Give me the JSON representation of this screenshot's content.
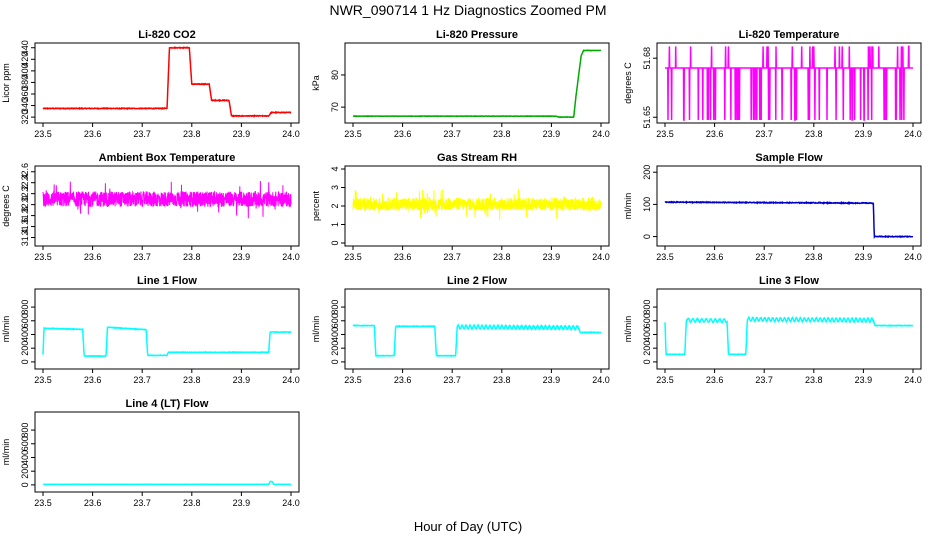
{
  "figure": {
    "title": "NWR_090714  1 Hz Diagnostics Zoomed PM",
    "xlabel": "Hour of Day (UTC)",
    "x_ticks": [
      "23.5",
      "23.6",
      "23.7",
      "23.8",
      "23.9",
      "24.0"
    ]
  },
  "chart_data": [
    {
      "type": "line",
      "title": "Li-820 CO2",
      "ylabel": "Licor ppm",
      "color": "#ff0000",
      "xlim": [
        23.5,
        24.0
      ],
      "ylim": [
        315,
        443
      ],
      "yticks": [
        "320",
        "340",
        "360",
        "380",
        "400",
        "420",
        "440"
      ],
      "noise": 0.6,
      "series": [
        {
          "x": [
            23.5,
            23.75,
            23.755,
            23.795,
            23.8,
            23.835,
            23.84,
            23.875,
            23.88,
            23.955,
            23.96,
            24.0
          ],
          "y": [
            335,
            335,
            440,
            440,
            377,
            377,
            349,
            349,
            322,
            322,
            328,
            328
          ]
        }
      ]
    },
    {
      "type": "line",
      "title": "Li-820 Pressure",
      "ylabel": "kPa",
      "color": "#00aa00",
      "xlim": [
        23.5,
        24.0
      ],
      "ylim": [
        66,
        89
      ],
      "yticks": [
        "70",
        "80"
      ],
      "noise": 0.05,
      "series": [
        {
          "x": [
            23.5,
            23.91,
            23.915,
            23.945,
            23.95,
            23.96,
            23.965,
            24.0
          ],
          "y": [
            67.2,
            67.2,
            66.9,
            66.9,
            74,
            86,
            87.6,
            87.6
          ]
        }
      ]
    },
    {
      "type": "line",
      "title": "Li-820 Temperature",
      "ylabel": "degrees C",
      "color": "#ff00ff",
      "xlim": [
        23.5,
        24.0
      ],
      "ylim": [
        51.6486,
        51.6862
      ],
      "yticks": [
        "51.65",
        "51.68"
      ],
      "base": 51.675,
      "spike_up": 51.686,
      "spike_down": 51.6486,
      "series": [
        {
          "name": "",
          "x": [],
          "y": []
        }
      ]
    },
    {
      "type": "line",
      "title": "Ambient Box Temperature",
      "ylabel": "degrees C",
      "color": "#ff00ff",
      "xlim": [
        23.5,
        24.0
      ],
      "ylim": [
        31.3,
        32.65
      ],
      "yticks": [
        "31.4",
        "31.6",
        "31.8",
        "32.0",
        "32.2",
        "32.4",
        "32.6"
      ],
      "center": 32.1,
      "noise": 0.14,
      "series": [
        {
          "name": "",
          "x": [],
          "y": []
        }
      ]
    },
    {
      "type": "line",
      "title": "Gas Stream RH",
      "ylabel": "percent",
      "color": "#ffff00",
      "xlim": [
        23.5,
        24.0
      ],
      "ylim": [
        0,
        4
      ],
      "yticks": [
        "0",
        "1",
        "2",
        "3",
        "4"
      ],
      "center": 2.1,
      "noise": 0.35,
      "series": [
        {
          "name": "",
          "x": [],
          "y": []
        }
      ]
    },
    {
      "type": "line",
      "title": "Sample Flow",
      "ylabel": "ml/min",
      "color": "#0000cc",
      "xlim": [
        23.5,
        24.0
      ],
      "ylim": [
        -20,
        210
      ],
      "yticks": [
        "0",
        "100",
        "200"
      ],
      "noise": 1.2,
      "series": [
        {
          "x": [
            23.5,
            23.92,
            23.922,
            24.0
          ],
          "y": [
            107,
            104,
            0,
            0
          ]
        }
      ]
    },
    {
      "type": "line",
      "title": "Line 1 Flow",
      "ylabel": "ml/min",
      "color": "#00ffff",
      "xlim": [
        23.5,
        24.0
      ],
      "ylim": [
        -60,
        1020
      ],
      "yticks": [
        "0",
        "200",
        "400",
        "600",
        "800"
      ],
      "noise": 4,
      "series": [
        {
          "x": [
            23.5,
            23.502,
            23.58,
            23.583,
            23.627,
            23.63,
            23.708,
            23.711,
            23.75,
            23.753,
            23.955,
            23.958,
            24.0
          ],
          "y": [
            110,
            490,
            475,
            85,
            85,
            505,
            470,
            95,
            95,
            140,
            140,
            435,
            435
          ]
        }
      ]
    },
    {
      "type": "line",
      "title": "Line 2 Flow",
      "ylabel": "ml/min",
      "color": "#00ffff",
      "xlim": [
        23.5,
        24.0
      ],
      "ylim": [
        -60,
        1020
      ],
      "yticks": [
        "0",
        "200",
        "400",
        "600",
        "800"
      ],
      "noise": 4,
      "wave": {
        "from": 23.71,
        "to": 23.955,
        "amp": 28,
        "period": 0.008
      },
      "series": [
        {
          "x": [
            23.5,
            23.502,
            23.543,
            23.546,
            23.583,
            23.586,
            23.665,
            23.668,
            23.707,
            23.71,
            23.955,
            23.958,
            24.0
          ],
          "y": [
            530,
            530,
            530,
            90,
            90,
            520,
            520,
            90,
            90,
            510,
            500,
            430,
            430
          ]
        }
      ]
    },
    {
      "type": "line",
      "title": "Line 3 Flow",
      "ylabel": "ml/min",
      "color": "#00ffff",
      "xlim": [
        23.5,
        24.0
      ],
      "ylim": [
        -60,
        1020
      ],
      "yticks": [
        "0",
        "200",
        "400",
        "600",
        "800"
      ],
      "noise": 4,
      "wave": {
        "from": 23.545,
        "to": 23.625,
        "amp": 25,
        "period": 0.009
      },
      "wave2": {
        "from": 23.667,
        "to": 23.92,
        "amp": 28,
        "period": 0.008
      },
      "series": [
        {
          "x": [
            23.5,
            23.502,
            23.505,
            23.54,
            23.543,
            23.625,
            23.628,
            23.663,
            23.666,
            23.92,
            23.923,
            24.0
          ],
          "y": [
            580,
            110,
            110,
            110,
            610,
            600,
            110,
            110,
            620,
            610,
            530,
            530
          ]
        }
      ]
    },
    {
      "type": "line",
      "title": "Line 4 (LT) Flow",
      "ylabel": "ml/min",
      "color": "#00ffff",
      "xlim": [
        23.5,
        24.0
      ],
      "ylim": [
        -60,
        1020
      ],
      "yticks": [
        "0",
        "200",
        "400",
        "600",
        "800"
      ],
      "noise": 1,
      "series": [
        {
          "x": [
            23.5,
            23.955,
            23.958,
            23.962,
            23.965,
            24.0
          ],
          "y": [
            8,
            8,
            50,
            50,
            8,
            8
          ]
        }
      ]
    }
  ]
}
